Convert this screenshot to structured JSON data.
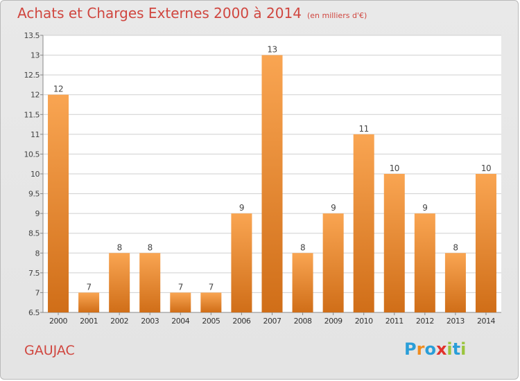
{
  "header": {
    "title": "Achats et Charges Externes 2000 à 2014",
    "unit": "(en milliers d'€)"
  },
  "footer": {
    "commune": "GAUJAC",
    "logo": {
      "letters": [
        "P",
        "r",
        "o",
        "x",
        "i",
        "t",
        "i"
      ],
      "colors": [
        "#2a9ed8",
        "#f08c1e",
        "#2a9ed8",
        "#e2312c",
        "#9bc43d",
        "#2a9ed8",
        "#9bc43d"
      ]
    }
  },
  "colors": {
    "bar_light": "#f9a552",
    "bar_dark": "#d06e18",
    "title": "#d0463f",
    "grid": "#cfcfcf"
  },
  "chart_data": {
    "type": "bar",
    "title": "Achats et Charges Externes 2000 à 2014",
    "xlabel": "",
    "ylabel": "",
    "categories": [
      "2000",
      "2001",
      "2002",
      "2003",
      "2004",
      "2005",
      "2006",
      "2007",
      "2008",
      "2009",
      "2010",
      "2011",
      "2012",
      "2013",
      "2014"
    ],
    "values": [
      12,
      7,
      8,
      8,
      7,
      7,
      9,
      13,
      8,
      9,
      11,
      10,
      9,
      8,
      10
    ],
    "ylim": [
      6.5,
      13.5
    ],
    "yticks": [
      "6.5",
      "7",
      "7.5",
      "8",
      "8.5",
      "9",
      "9.5",
      "10",
      "10.5",
      "11",
      "11.5",
      "12",
      "12.5",
      "13",
      "13.5"
    ],
    "grid": true,
    "legend": "none"
  }
}
